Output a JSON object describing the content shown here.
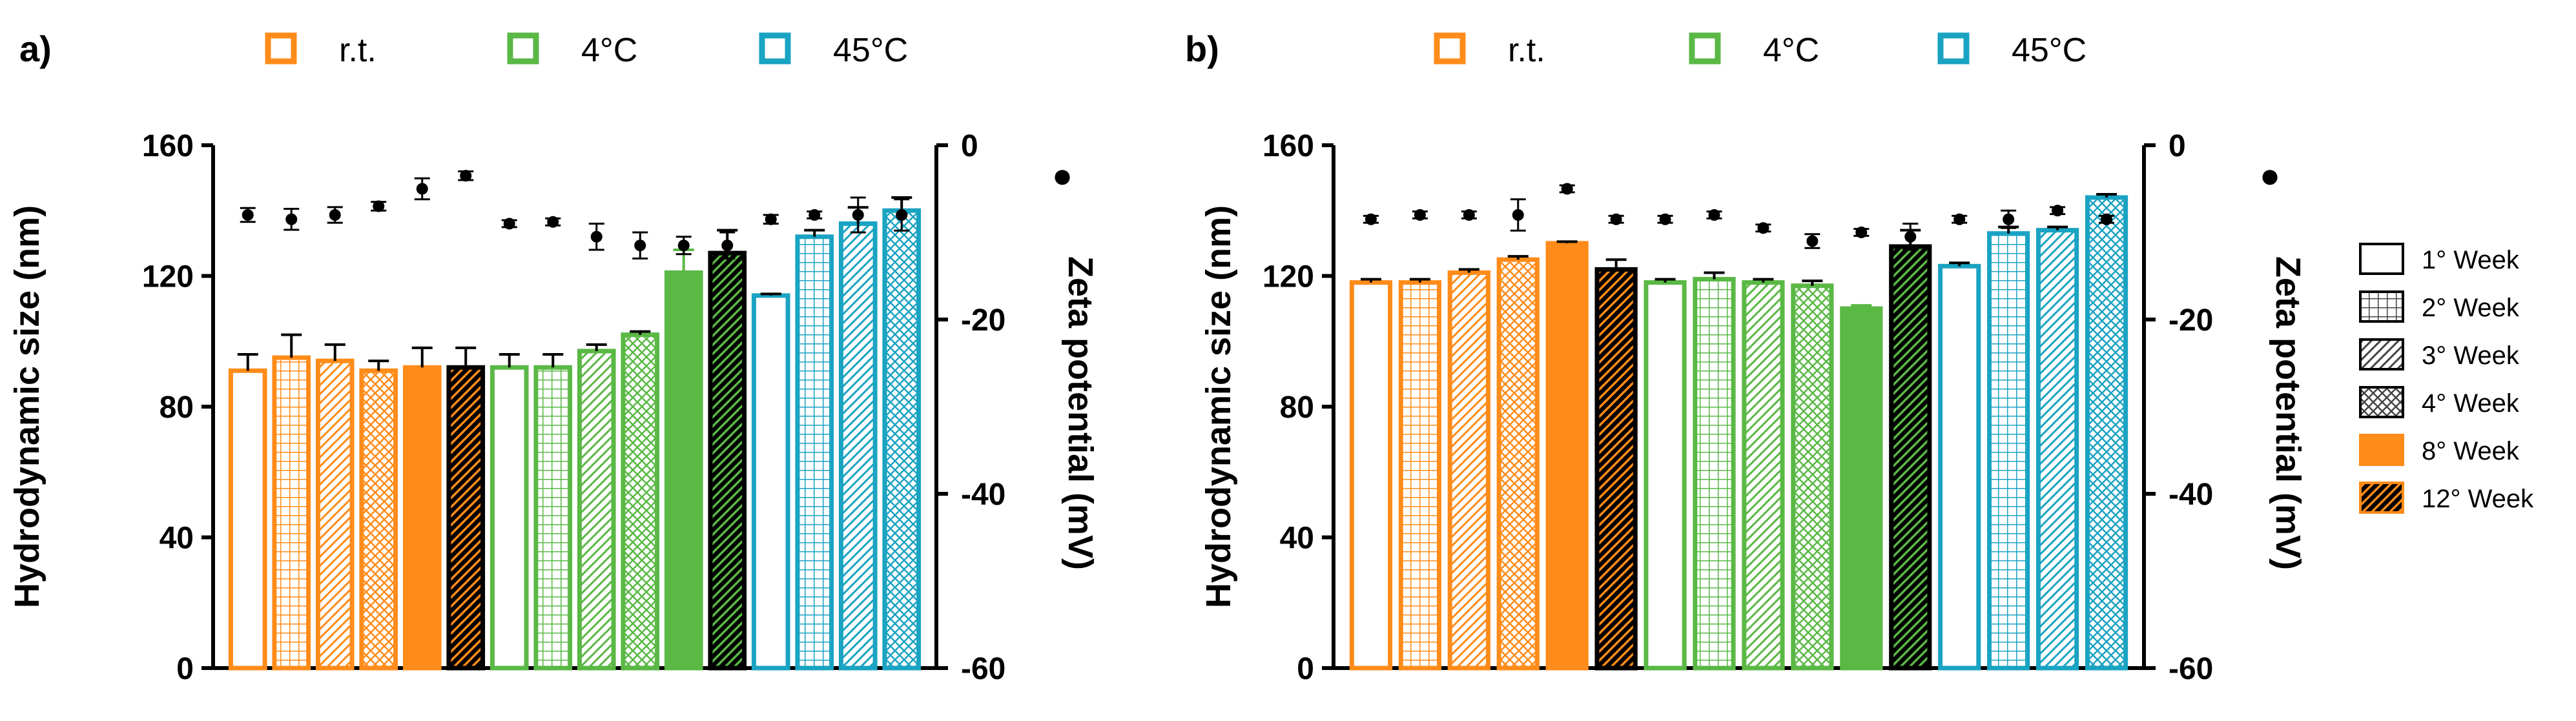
{
  "series_legend": [
    {
      "label": "r.t.",
      "color": "#FF8C1A"
    },
    {
      "label": "4°C",
      "color": "#5AB845"
    },
    {
      "label": "45°C",
      "color": "#1AA3C2"
    }
  ],
  "pattern_legend": [
    {
      "label": "1° Week",
      "pattern": "open"
    },
    {
      "label": "2° Week",
      "pattern": "grid"
    },
    {
      "label": "3° Week",
      "pattern": "hatch"
    },
    {
      "label": "4° Week",
      "pattern": "cross"
    },
    {
      "label": "8° Week",
      "pattern": "solid"
    },
    {
      "label": "12° Week",
      "pattern": "darkhatch"
    }
  ],
  "zeta_marker_legend": "●",
  "chart_data": [
    {
      "panel": "a)",
      "type": "bar",
      "ylabel": "Hydrodynamic size (nm)",
      "y2label": "Zeta potential (mV)",
      "ylim": [
        0,
        160
      ],
      "y2lim": [
        -60,
        0
      ],
      "yticks": [
        0,
        40,
        80,
        120,
        160
      ],
      "y2ticks": [
        0,
        -20,
        -40,
        -60
      ],
      "groups": [
        {
          "name": "r.t.",
          "color": "#FF8C1A",
          "weeks": [
            "1° Week",
            "2° Week",
            "3° Week",
            "4° Week",
            "8° Week",
            "12° Week"
          ],
          "size": [
            91,
            95,
            94,
            91,
            92,
            92
          ],
          "size_err": [
            5,
            7,
            5,
            3,
            6,
            6
          ],
          "zeta": [
            -8,
            -8.5,
            -8,
            -7,
            -5,
            -3.5
          ],
          "zeta_err": [
            0.8,
            1.2,
            0.9,
            0.5,
            1.2,
            0.5
          ]
        },
        {
          "name": "4°C",
          "color": "#5AB845",
          "weeks": [
            "1° Week",
            "2° Week",
            "3° Week",
            "4° Week",
            "8° Week",
            "12° Week"
          ],
          "size": [
            92,
            92,
            97,
            102,
            121,
            127
          ],
          "size_err": [
            4,
            4,
            2,
            1,
            7,
            7
          ],
          "zeta": [
            -9,
            -8.8,
            -10.5,
            -11.5,
            -11.5,
            -11.5
          ],
          "zeta_err": [
            0.4,
            0.4,
            1.5,
            1.5,
            1,
            1.5
          ]
        },
        {
          "name": "45°C",
          "color": "#1AA3C2",
          "weeks": [
            "1° Week",
            "2° Week",
            "3° Week",
            "4° Week"
          ],
          "size": [
            114,
            132,
            136,
            140
          ],
          "size_err": [
            0.5,
            2,
            5,
            4
          ],
          "zeta": [
            -8.5,
            -8,
            -8,
            -8
          ],
          "zeta_err": [
            0.5,
            0.4,
            2,
            1.8
          ]
        }
      ]
    },
    {
      "panel": "b)",
      "type": "bar",
      "ylabel": "Hydrodynamic size (nm)",
      "y2label": "Zeta potential (mV)",
      "ylim": [
        0,
        160
      ],
      "y2lim": [
        -60,
        0
      ],
      "yticks": [
        0,
        40,
        80,
        120,
        160
      ],
      "y2ticks": [
        0,
        -20,
        -40,
        -60
      ],
      "groups": [
        {
          "name": "r.t.",
          "color": "#FF8C1A",
          "weeks": [
            "1° Week",
            "2° Week",
            "3° Week",
            "4° Week",
            "8° Week",
            "12° Week"
          ],
          "size": [
            118,
            118,
            121,
            125,
            130,
            122
          ],
          "size_err": [
            1,
            1,
            1,
            1,
            0.5,
            3
          ],
          "zeta": [
            -8.5,
            -8,
            -8,
            -8,
            -5,
            -8.5
          ],
          "zeta_err": [
            0.4,
            0.4,
            0.4,
            1.8,
            0.4,
            0.4
          ]
        },
        {
          "name": "4°C",
          "color": "#5AB845",
          "weeks": [
            "1° Week",
            "2° Week",
            "3° Week",
            "4° Week",
            "8° Week",
            "12° Week"
          ],
          "size": [
            118,
            119,
            118,
            117,
            110,
            129
          ],
          "size_err": [
            1,
            2,
            1,
            1.5,
            1,
            5
          ],
          "zeta": [
            -8.5,
            -8,
            -9.5,
            -11,
            -10,
            -10.5
          ],
          "zeta_err": [
            0.4,
            0.4,
            0.4,
            0.8,
            0.4,
            1.5
          ]
        },
        {
          "name": "45°C",
          "color": "#1AA3C2",
          "weeks": [
            "1° Week",
            "2° Week",
            "3° Week",
            "4° Week"
          ],
          "size": [
            123,
            133,
            134,
            144
          ],
          "size_err": [
            1,
            2,
            1,
            1
          ],
          "zeta": [
            -8.5,
            -8.5,
            -7.5,
            -8.5
          ],
          "zeta_err": [
            0.4,
            1,
            0.4,
            0.4
          ]
        }
      ]
    }
  ]
}
